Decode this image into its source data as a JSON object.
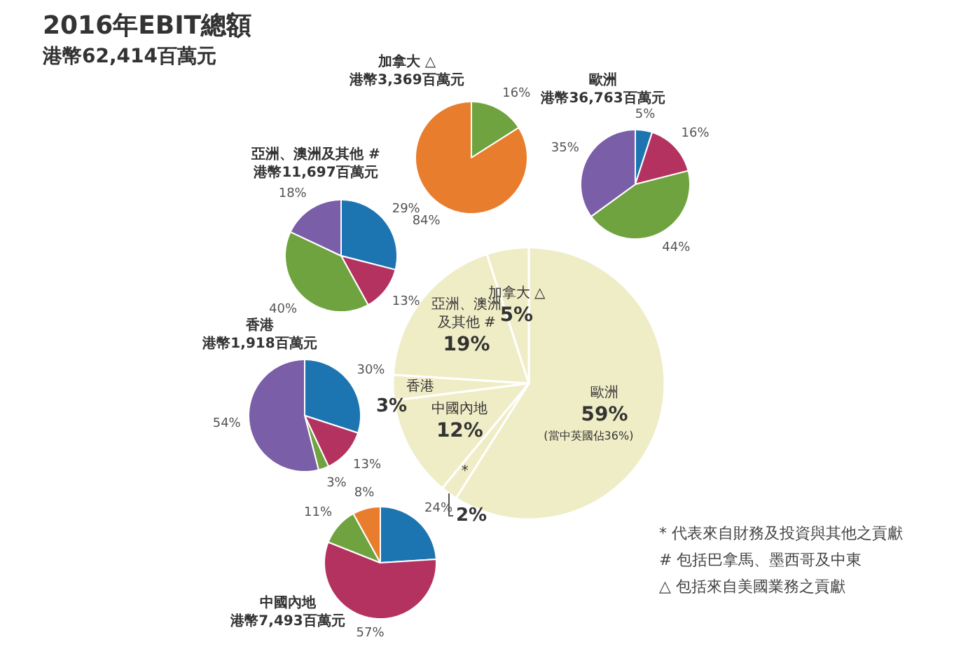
{
  "chart_data": [
    {
      "type": "pie",
      "title": "2016年EBIT總額",
      "subtitle": "港幣62,414百萬元",
      "categories": [
        "歐洲",
        "*",
        "中國內地",
        "香港",
        "亞洲、澳洲及其他 #",
        "加拿大 △"
      ],
      "values": [
        59,
        2,
        12,
        3,
        19,
        5
      ],
      "value_labels": [
        "59%",
        "2%",
        "12%",
        "3%",
        "19%",
        "5%"
      ],
      "colors": [
        "#efedc6",
        "#efedc6",
        "#efedc6",
        "#efedc6",
        "#efedc6",
        "#efedc6"
      ],
      "annotations": [
        "(當中英國佔36%)",
        "*  代表來自財務及投資與其他之貢獻",
        "#  包括巴拿馬、墨西哥及中東",
        "△  包括來自美國業務之貢獻"
      ]
    },
    {
      "type": "pie",
      "title": "加拿大 △",
      "subtitle": "港幣3,369百萬元",
      "categories": [
        null,
        null
      ],
      "values": [
        16,
        84
      ],
      "value_labels": [
        "16%",
        "84%"
      ],
      "colors": [
        "#6fa33f",
        "#e97d2e"
      ]
    },
    {
      "type": "pie",
      "title": "歐洲",
      "subtitle": "港幣36,763百萬元",
      "categories": [
        null,
        null,
        null,
        null
      ],
      "values": [
        5,
        16,
        44,
        35
      ],
      "value_labels": [
        "5%",
        "16%",
        "44%",
        "35%"
      ],
      "colors": [
        "#1c75b0",
        "#b3325f",
        "#6fa33f",
        "#7a5ea8"
      ]
    },
    {
      "type": "pie",
      "title": "亞洲、澳洲及其他 #",
      "subtitle": "港幣11,697百萬元",
      "categories": [
        null,
        null,
        null,
        null
      ],
      "values": [
        29,
        13,
        40,
        18
      ],
      "value_labels": [
        "29%",
        "13%",
        "40%",
        "18%"
      ],
      "colors": [
        "#1c75b0",
        "#b3325f",
        "#6fa33f",
        "#7a5ea8"
      ]
    },
    {
      "type": "pie",
      "title": "香港",
      "subtitle": "港幣1,918百萬元",
      "categories": [
        null,
        null,
        null,
        null
      ],
      "values": [
        30,
        13,
        3,
        54
      ],
      "value_labels": [
        "30%",
        "13%",
        "3%",
        "54%"
      ],
      "colors": [
        "#1c75b0",
        "#b3325f",
        "#6fa33f",
        "#7a5ea8"
      ]
    },
    {
      "type": "pie",
      "title": "中國內地",
      "subtitle": "港幣7,493百萬元",
      "categories": [
        null,
        null,
        null,
        null
      ],
      "values": [
        24,
        57,
        11,
        8
      ],
      "value_labels": [
        "24%",
        "57%",
        "11%",
        "8%"
      ],
      "colors": [
        "#1c75b0",
        "#b3325f",
        "#6fa33f",
        "#e97d2e"
      ]
    }
  ]
}
